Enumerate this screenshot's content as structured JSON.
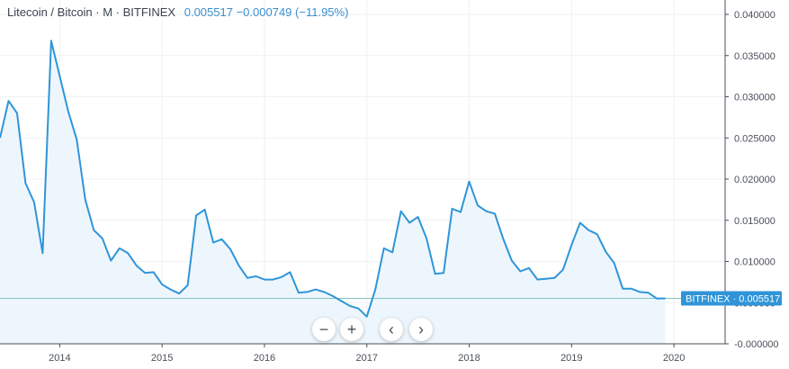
{
  "header": {
    "symbol": "Litecoin / Bitcoin · M · BITFINEX",
    "last": "0.005517",
    "change": "−0.000749",
    "change_pct": "(−11.95%)"
  },
  "price_label": {
    "exchange": "BITFINEX",
    "value": "0.005517"
  },
  "controls": {
    "zoom_out": "−",
    "zoom_in": "+",
    "scroll_left": "‹",
    "scroll_right": "›"
  },
  "colors": {
    "line": "#2f95d8",
    "fill": "#eef6fd",
    "price_tag": "#2f95d8",
    "grid": "#eef1f5"
  },
  "chart_data": {
    "type": "area",
    "title": "",
    "xlabel": "",
    "ylabel": "",
    "grid": true,
    "x_ticks": [
      "2014",
      "2015",
      "2016",
      "2017",
      "2018",
      "2019",
      "2020"
    ],
    "y_ticks": [
      "0.040000",
      "0.035000",
      "0.030000",
      "0.025000",
      "0.020000",
      "0.015000",
      "0.010000",
      "0.005000",
      "-0.000000"
    ],
    "ylim": [
      0,
      0.04
    ],
    "xlim": [
      "2013-06",
      "2020-07"
    ],
    "series": [
      {
        "dates": [
          "2013-06",
          "2013-07",
          "2013-08",
          "2013-09",
          "2013-10",
          "2013-11",
          "2013-12",
          "2014-01",
          "2014-02",
          "2014-03",
          "2014-04",
          "2014-05",
          "2014-06",
          "2014-07",
          "2014-08",
          "2014-09",
          "2014-10",
          "2014-11",
          "2014-12",
          "2015-01",
          "2015-02",
          "2015-03",
          "2015-04",
          "2015-05",
          "2015-06",
          "2015-07",
          "2015-08",
          "2015-09",
          "2015-10",
          "2015-11",
          "2015-12",
          "2016-01",
          "2016-02",
          "2016-03",
          "2016-04",
          "2016-05",
          "2016-06",
          "2016-07",
          "2016-08",
          "2016-09",
          "2016-10",
          "2016-11",
          "2016-12",
          "2017-01",
          "2017-02",
          "2017-03",
          "2017-04",
          "2017-05",
          "2017-06",
          "2017-07",
          "2017-08",
          "2017-09",
          "2017-10",
          "2017-11",
          "2017-12",
          "2018-01",
          "2018-02",
          "2018-03",
          "2018-04",
          "2018-05",
          "2018-06",
          "2018-07",
          "2018-08",
          "2018-09",
          "2018-10",
          "2018-11",
          "2018-12",
          "2019-01",
          "2019-02",
          "2019-03",
          "2019-04",
          "2019-05",
          "2019-06",
          "2019-07",
          "2019-08",
          "2019-09",
          "2019-10",
          "2019-11",
          "2019-12"
        ],
        "values": [
          0.025,
          0.0295,
          0.028,
          0.0195,
          0.0172,
          0.011,
          0.0368,
          0.0325,
          0.0282,
          0.0248,
          0.0175,
          0.0138,
          0.0128,
          0.0101,
          0.0116,
          0.011,
          0.0095,
          0.0086,
          0.0087,
          0.0072,
          0.0066,
          0.0061,
          0.0071,
          0.0156,
          0.0163,
          0.0123,
          0.0127,
          0.0115,
          0.0095,
          0.008,
          0.0082,
          0.0078,
          0.0078,
          0.0081,
          0.0087,
          0.0062,
          0.0063,
          0.0066,
          0.0063,
          0.0058,
          0.0052,
          0.0046,
          0.0043,
          0.0033,
          0.0066,
          0.0116,
          0.0111,
          0.0161,
          0.0147,
          0.0154,
          0.0128,
          0.0085,
          0.0086,
          0.0164,
          0.016,
          0.0197,
          0.0168,
          0.0161,
          0.0158,
          0.0127,
          0.0101,
          0.0088,
          0.0092,
          0.0078,
          0.0079,
          0.008,
          0.009,
          0.012,
          0.0147,
          0.0138,
          0.0133,
          0.0112,
          0.0098,
          0.0067,
          0.0067,
          0.0063,
          0.0062,
          0.0055,
          0.005517
        ]
      }
    ],
    "last_value": 0.005517
  }
}
